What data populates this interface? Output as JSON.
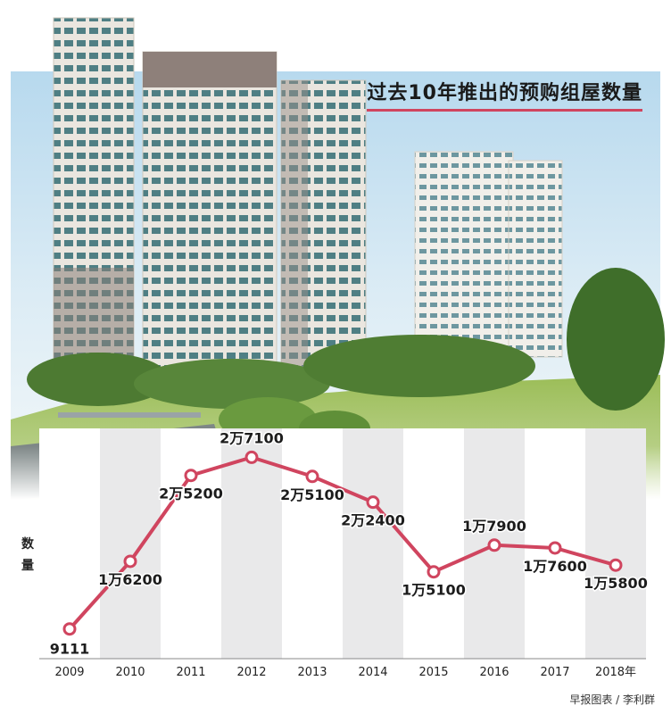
{
  "chart_data": {
    "type": "line",
    "title": "过去10年推出的预购组屋数量",
    "ylabel": "数量",
    "xlabel": "",
    "categories": [
      "2009",
      "2010",
      "2011",
      "2012",
      "2013",
      "2014",
      "2015",
      "2016",
      "2017",
      "2018年"
    ],
    "series": [
      {
        "values": [
          9111,
          16200,
          25200,
          27100,
          25100,
          22400,
          15100,
          17900,
          17600,
          15800
        ]
      }
    ],
    "data_labels": [
      "9111",
      "1万6200",
      "2万5200",
      "2万7100",
      "2万5100",
      "2万2400",
      "1万5100",
      "1万7900",
      "1万7600",
      "1万5800"
    ],
    "ylim": [
      6000,
      32000
    ],
    "grid": false,
    "line_color": "#d0455f",
    "band_color": "#e9e9ea"
  },
  "credit": "早报图表 / 李利群"
}
